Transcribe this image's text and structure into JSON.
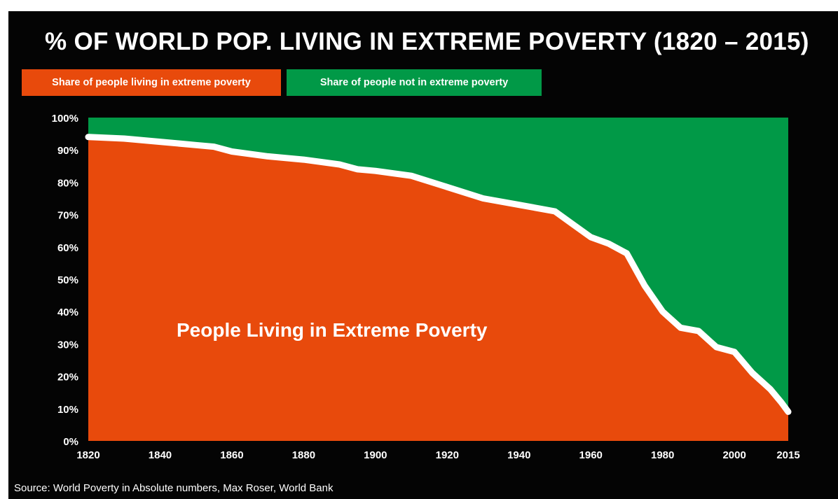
{
  "title": "% OF WORLD POP. LIVING IN EXTREME POVERTY (1820 – 2015)",
  "legend": [
    {
      "label": "Share of people living in extreme poverty",
      "color": "#E84A0C"
    },
    {
      "label": "Share of people  not in extreme poverty",
      "color": "#019947"
    }
  ],
  "source": "Source: World Poverty in Absolute numbers, Max Roser, World Bank",
  "chart_data": {
    "type": "area",
    "title": "% OF WORLD POP. LIVING IN EXTREME POVERTY (1820 – 2015)",
    "xlabel": "",
    "ylabel": "",
    "xlim": [
      1820,
      2015
    ],
    "ylim": [
      0,
      100
    ],
    "x_ticks": [
      "1820",
      "1840",
      "1860",
      "1880",
      "1900",
      "1920",
      "1940",
      "1960",
      "1980",
      "2000",
      "2015"
    ],
    "y_ticks": [
      "100%",
      "90%",
      "80%",
      "70%",
      "60%",
      "50%",
      "40%",
      "30%",
      "20%",
      "10%",
      "0%"
    ],
    "annotation": "People Living in Extreme Poverty",
    "x": [
      1820,
      1830,
      1840,
      1850,
      1855,
      1860,
      1870,
      1880,
      1890,
      1895,
      1900,
      1910,
      1920,
      1930,
      1940,
      1950,
      1955,
      1960,
      1965,
      1970,
      1975,
      1980,
      1985,
      1990,
      1995,
      2000,
      2005,
      2008,
      2010,
      2013,
      2015
    ],
    "series": [
      {
        "name": "Share of people living in extreme poverty",
        "color": "#E84A0C",
        "values": [
          94,
          93.5,
          92.5,
          91.5,
          91,
          89.5,
          88,
          87,
          85.5,
          84,
          83.5,
          82,
          78.5,
          75,
          73,
          71,
          67,
          63,
          61,
          58,
          48,
          40,
          35,
          34,
          29,
          27.5,
          21,
          18,
          16,
          12,
          9
        ]
      },
      {
        "name": "Share of people  not in extreme poverty",
        "color": "#019947",
        "values": [
          6,
          6.5,
          7.5,
          8.5,
          9,
          10.5,
          12,
          13,
          14.5,
          16,
          16.5,
          18,
          21.5,
          25,
          27,
          29,
          33,
          37,
          39,
          42,
          52,
          60,
          65,
          66,
          71,
          72.5,
          79,
          82,
          84,
          88,
          91
        ]
      }
    ],
    "stacked": true,
    "legend_position": "top-left"
  }
}
